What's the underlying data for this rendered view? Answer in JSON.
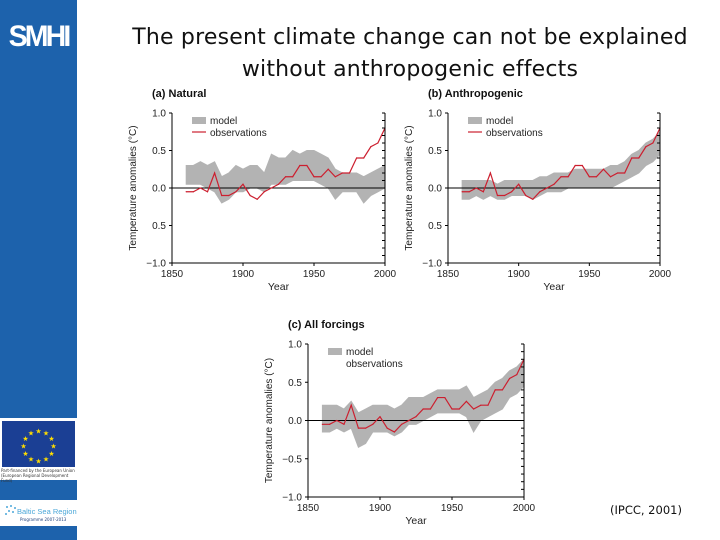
{
  "sidebar": {
    "logo_text": "SMHI",
    "eu_caption": "Part-financed by the European Union (European Regional Development Fund)",
    "bsr_name": "Baltic Sea Region",
    "bsr_sub": "Programme 2007-2013",
    "brand_color": "#1d62ac"
  },
  "slide": {
    "title": "The present climate change can not be explained without anthropogenic effects",
    "source": "(IPCC, 2001)"
  },
  "chart_data": [
    {
      "type": "area+line",
      "title": "(a) Natural",
      "xlabel": "Year",
      "ylabel": "Temperature anomalies (°C)",
      "xlim": [
        1850,
        2000
      ],
      "ylim": [
        -1.0,
        1.0
      ],
      "xticks": [
        "1850",
        "1900",
        "1950",
        "2000"
      ],
      "yticks": [
        "1.0",
        "0.5",
        "0.0",
        "0.5",
        "−1.0"
      ],
      "legend": [
        "model",
        "observations"
      ],
      "legend_position": "top-left",
      "colors": {
        "model": "#b3b3b3",
        "observations": "#cc1f2f"
      },
      "x": [
        1860,
        1865,
        1870,
        1875,
        1880,
        1885,
        1890,
        1895,
        1900,
        1905,
        1910,
        1915,
        1920,
        1925,
        1930,
        1935,
        1940,
        1945,
        1950,
        1955,
        1960,
        1965,
        1970,
        1975,
        1980,
        1985,
        1990,
        1995,
        2000
      ],
      "series": [
        {
          "name": "model",
          "lower": [
            0.05,
            0.05,
            0.05,
            0.0,
            -0.05,
            -0.2,
            -0.15,
            -0.05,
            -0.05,
            0.0,
            0.0,
            -0.05,
            0.05,
            0.05,
            0.05,
            0.1,
            0.1,
            0.1,
            0.1,
            0.05,
            0.0,
            -0.15,
            -0.05,
            -0.05,
            -0.05,
            -0.2,
            -0.1,
            -0.05,
            0.0
          ],
          "upper": [
            0.3,
            0.3,
            0.35,
            0.3,
            0.35,
            0.15,
            0.2,
            0.3,
            0.25,
            0.3,
            0.3,
            0.2,
            0.45,
            0.4,
            0.4,
            0.5,
            0.45,
            0.5,
            0.5,
            0.45,
            0.4,
            0.25,
            0.2,
            0.2,
            0.2,
            0.15,
            0.2,
            0.25,
            0.3
          ]
        },
        {
          "name": "observations",
          "values": [
            -0.05,
            -0.05,
            0.0,
            -0.05,
            0.2,
            -0.1,
            -0.1,
            -0.05,
            0.05,
            -0.1,
            -0.15,
            -0.05,
            0.0,
            0.05,
            0.15,
            0.15,
            0.3,
            0.3,
            0.15,
            0.15,
            0.25,
            0.15,
            0.2,
            0.2,
            0.4,
            0.4,
            0.55,
            0.6,
            0.8
          ]
        }
      ]
    },
    {
      "type": "area+line",
      "title": "(b) Anthropogenic",
      "xlabel": "Year",
      "ylabel": "Temperature anomalies (°C)",
      "xlim": [
        1850,
        2000
      ],
      "ylim": [
        -1.0,
        1.0
      ],
      "xticks": [
        "1850",
        "1900",
        "1950",
        "2000"
      ],
      "yticks": [
        "1.0",
        "0.5",
        "0.0",
        "0.5",
        "−1.0"
      ],
      "legend": [
        "model",
        "observations"
      ],
      "legend_position": "top-left",
      "colors": {
        "model": "#b3b3b3",
        "observations": "#cc1f2f"
      },
      "x": [
        1860,
        1865,
        1870,
        1875,
        1880,
        1885,
        1890,
        1895,
        1900,
        1905,
        1910,
        1915,
        1920,
        1925,
        1930,
        1935,
        1940,
        1945,
        1950,
        1955,
        1960,
        1965,
        1970,
        1975,
        1980,
        1985,
        1990,
        1995,
        2000
      ],
      "series": [
        {
          "name": "model",
          "lower": [
            -0.15,
            -0.15,
            -0.1,
            -0.15,
            -0.1,
            -0.15,
            -0.15,
            -0.1,
            -0.1,
            -0.1,
            -0.15,
            -0.1,
            -0.05,
            -0.05,
            -0.05,
            0.0,
            0.0,
            0.0,
            0.0,
            0.0,
            0.0,
            0.0,
            0.05,
            0.1,
            0.15,
            0.2,
            0.3,
            0.35,
            0.45
          ],
          "upper": [
            0.1,
            0.1,
            0.1,
            0.1,
            0.1,
            0.05,
            0.1,
            0.1,
            0.1,
            0.1,
            0.1,
            0.15,
            0.15,
            0.2,
            0.2,
            0.2,
            0.25,
            0.25,
            0.25,
            0.25,
            0.25,
            0.3,
            0.3,
            0.35,
            0.45,
            0.5,
            0.6,
            0.65,
            0.75
          ]
        },
        {
          "name": "observations",
          "values": [
            -0.05,
            -0.05,
            0.0,
            -0.05,
            0.2,
            -0.1,
            -0.1,
            -0.05,
            0.05,
            -0.1,
            -0.15,
            -0.05,
            0.0,
            0.05,
            0.15,
            0.15,
            0.3,
            0.3,
            0.15,
            0.15,
            0.25,
            0.15,
            0.2,
            0.2,
            0.4,
            0.4,
            0.55,
            0.6,
            0.8
          ]
        }
      ]
    },
    {
      "type": "area+line",
      "title": "(c) All forcings",
      "xlabel": "Year",
      "ylabel": "Temperature anomalies (°C)",
      "xlim": [
        1850,
        2000
      ],
      "ylim": [
        -1.0,
        1.0
      ],
      "xticks": [
        "1850",
        "1900",
        "1950",
        "2000"
      ],
      "yticks": [
        "1.0",
        "0.5",
        "0.0",
        "−0.5",
        "−1.0"
      ],
      "legend": [
        "model",
        "observations"
      ],
      "legend_position": "top-left",
      "colors": {
        "model": "#b3b3b3",
        "observations": "#cc1f2f"
      },
      "x": [
        1860,
        1865,
        1870,
        1875,
        1880,
        1885,
        1890,
        1895,
        1900,
        1905,
        1910,
        1915,
        1920,
        1925,
        1930,
        1935,
        1940,
        1945,
        1950,
        1955,
        1960,
        1965,
        1970,
        1975,
        1980,
        1985,
        1990,
        1995,
        2000
      ],
      "series": [
        {
          "name": "model",
          "lower": [
            -0.15,
            -0.15,
            -0.1,
            -0.15,
            -0.1,
            -0.35,
            -0.3,
            -0.15,
            -0.15,
            -0.15,
            -0.2,
            -0.15,
            -0.05,
            -0.05,
            0.0,
            0.05,
            0.1,
            0.1,
            0.1,
            0.1,
            0.05,
            -0.15,
            0.0,
            0.05,
            0.1,
            0.15,
            0.3,
            0.35,
            0.45
          ],
          "upper": [
            0.2,
            0.2,
            0.2,
            0.15,
            0.25,
            0.1,
            0.15,
            0.2,
            0.2,
            0.2,
            0.15,
            0.2,
            0.3,
            0.3,
            0.3,
            0.35,
            0.4,
            0.4,
            0.4,
            0.4,
            0.45,
            0.3,
            0.35,
            0.4,
            0.5,
            0.55,
            0.65,
            0.7,
            0.8
          ]
        },
        {
          "name": "observations",
          "values": [
            -0.05,
            -0.05,
            0.0,
            -0.05,
            0.2,
            -0.1,
            -0.1,
            -0.05,
            0.05,
            -0.1,
            -0.15,
            -0.05,
            0.0,
            0.05,
            0.15,
            0.15,
            0.3,
            0.3,
            0.15,
            0.15,
            0.25,
            0.15,
            0.2,
            0.2,
            0.4,
            0.4,
            0.55,
            0.6,
            0.8
          ]
        }
      ]
    }
  ]
}
